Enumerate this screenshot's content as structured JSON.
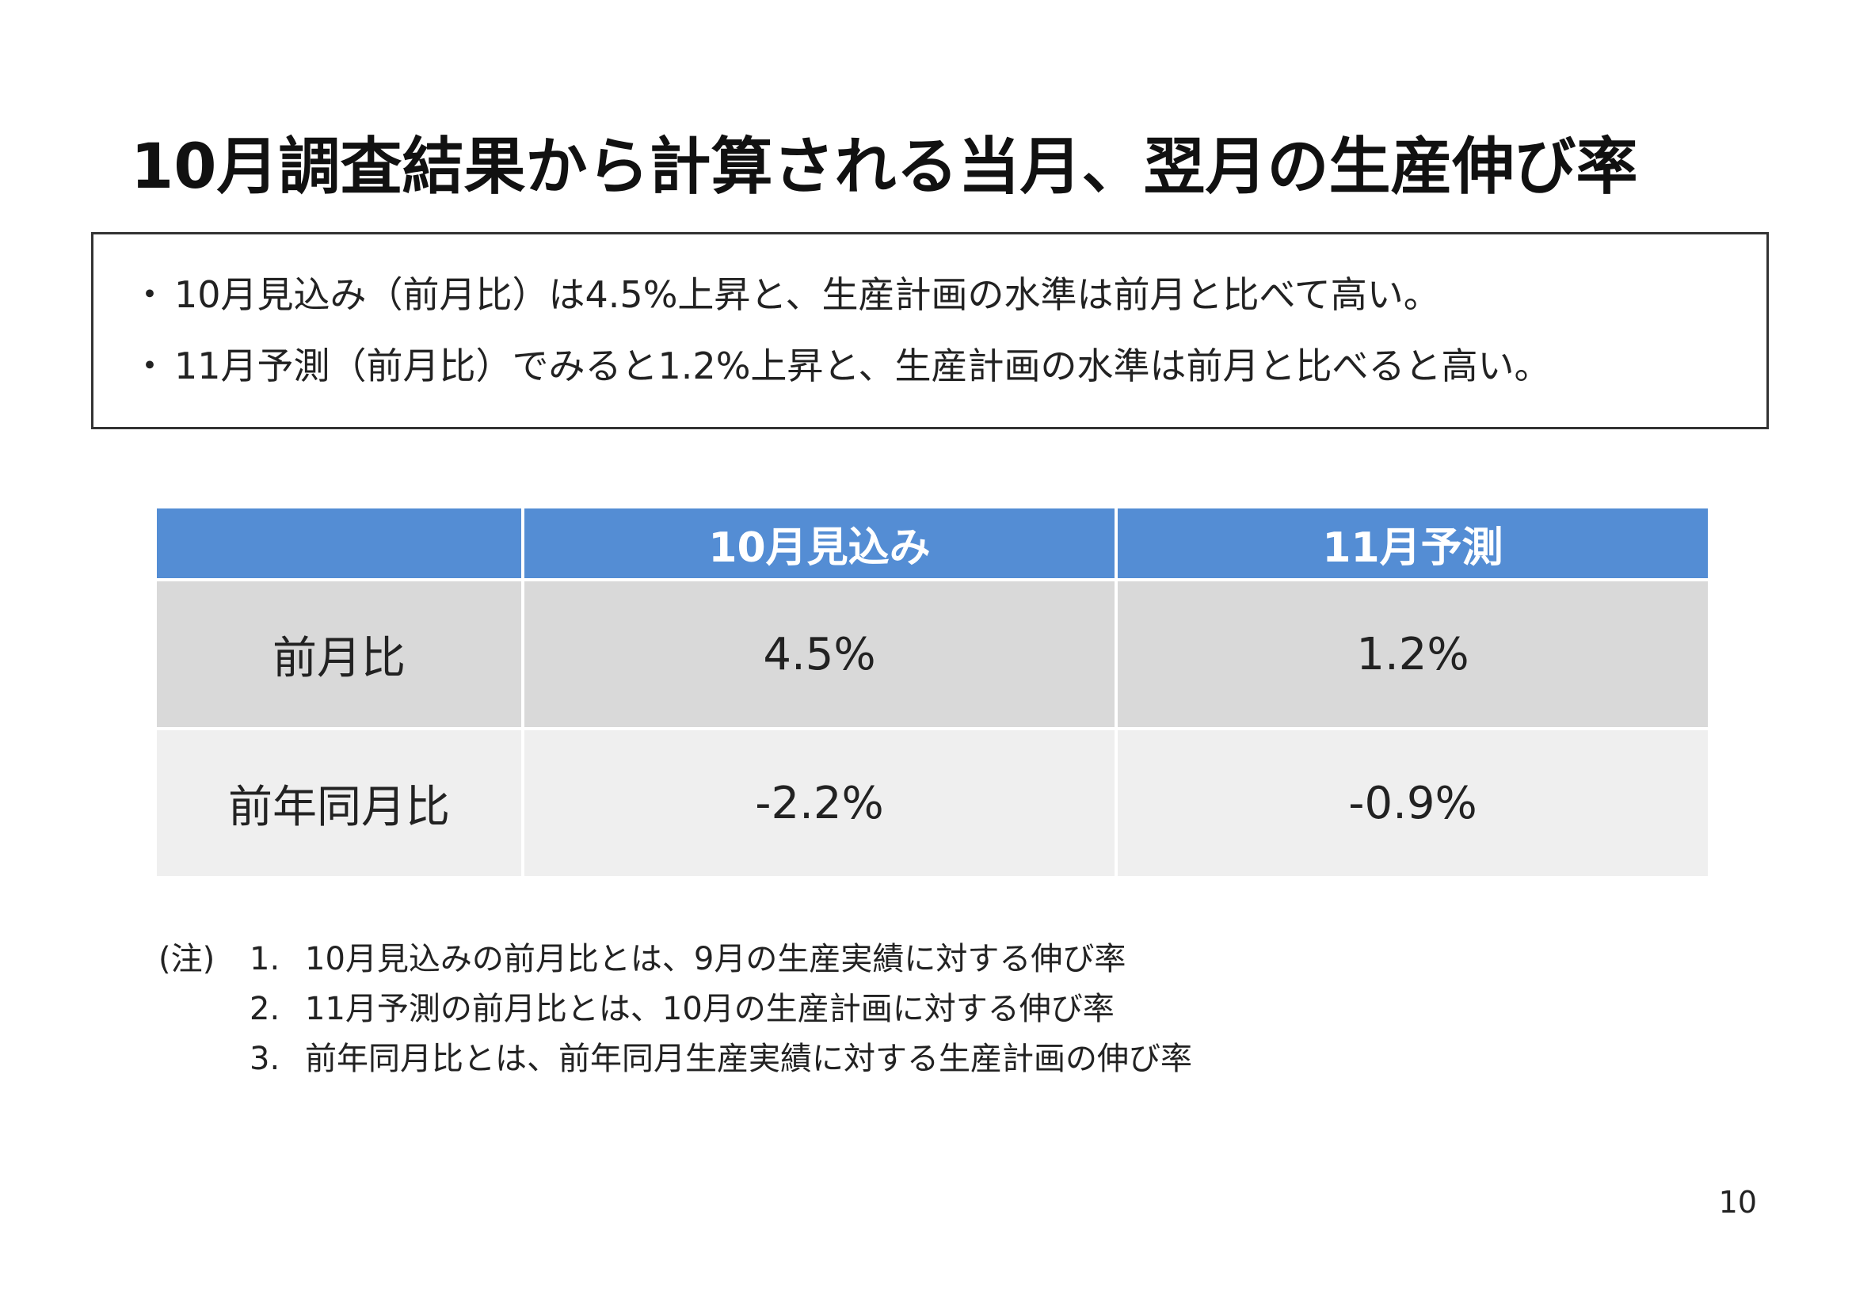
{
  "title": "10月調査結果から計算される当月、翌月の生産伸び率",
  "summary": {
    "bullet_symbol": "・",
    "items": [
      "10月見込み（前月比）は4.5%上昇と、生産計画の水準は前月と比べて高い。",
      "11月予測（前月比）でみると1.2%上昇と、生産計画の水準は前月と比べると高い。"
    ]
  },
  "table": {
    "columns": [
      "",
      "10月見込み",
      "11月予測"
    ],
    "rows": [
      {
        "label": "前月比",
        "values": [
          "4.5%",
          "1.2%"
        ]
      },
      {
        "label": "前年同月比",
        "values": [
          "-2.2%",
          "-0.9%"
        ]
      }
    ]
  },
  "notes": {
    "prefix": "(注)",
    "items": [
      {
        "num": "1.",
        "text": "10月見込みの前月比とは、9月の生産実績に対する伸び率"
      },
      {
        "num": "2.",
        "text": "11月予測の前月比とは、10月の生産計画に対する伸び率"
      },
      {
        "num": "3.",
        "text": "前年同月比とは、前年同月生産実績に対する生産計画の伸び率"
      }
    ]
  },
  "page_number": "10",
  "colors": {
    "header_bg": "#548dd4",
    "row1_bg": "#d9d9d9",
    "row2_bg": "#efefef"
  }
}
